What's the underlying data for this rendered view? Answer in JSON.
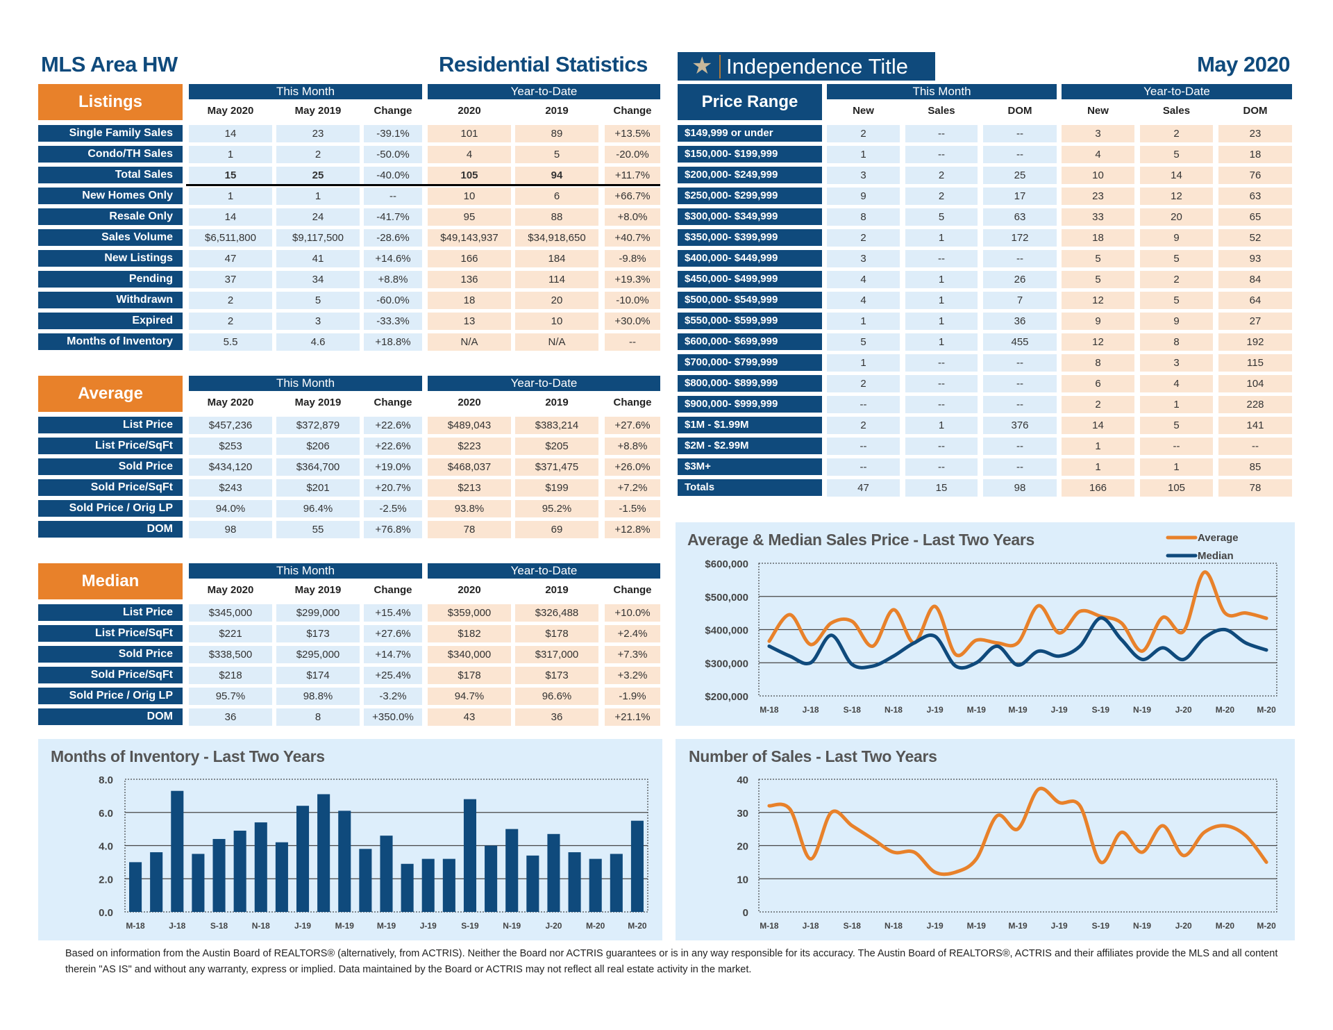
{
  "header": {
    "left_title": "MLS Area HW",
    "center_title": "Residential Statistics",
    "logo_text": "Independence Title",
    "date_title": "May 2020"
  },
  "colors": {
    "navy": "#0f4a7c",
    "orange": "#e8812a",
    "this_month_cell": "#deedf9",
    "ytd_cell": "#fbe5d2",
    "panel": "#ddeefb"
  },
  "groups": {
    "this_month": "This Month",
    "ytd": "Year-to-Date"
  },
  "stat_columns": [
    "May 2020",
    "May 2019",
    "Change",
    "2020",
    "2019",
    "Change"
  ],
  "listings": {
    "title": "Listings",
    "rows": [
      {
        "label": "Single Family Sales",
        "values": [
          "14",
          "23",
          "-39.1%",
          "101",
          "89",
          "+13.5%"
        ]
      },
      {
        "label": "Condo/TH Sales",
        "values": [
          "1",
          "2",
          "-50.0%",
          "4",
          "5",
          "-20.0%"
        ]
      },
      {
        "label": "Total Sales",
        "values": [
          "15",
          "25",
          "-40.0%",
          "105",
          "94",
          "+11.7%"
        ],
        "bold": true
      },
      {
        "label": "New Homes Only",
        "values": [
          "1",
          "1",
          "--",
          "10",
          "6",
          "+66.7%"
        ]
      },
      {
        "label": "Resale Only",
        "values": [
          "14",
          "24",
          "-41.7%",
          "95",
          "88",
          "+8.0%"
        ]
      },
      {
        "label": "Sales Volume",
        "values": [
          "$6,511,800",
          "$9,117,500",
          "-28.6%",
          "$49,143,937",
          "$34,918,650",
          "+40.7%"
        ]
      },
      {
        "label": "New Listings",
        "values": [
          "47",
          "41",
          "+14.6%",
          "166",
          "184",
          "-9.8%"
        ]
      },
      {
        "label": "Pending",
        "values": [
          "37",
          "34",
          "+8.8%",
          "136",
          "114",
          "+19.3%"
        ]
      },
      {
        "label": "Withdrawn",
        "values": [
          "2",
          "5",
          "-60.0%",
          "18",
          "20",
          "-10.0%"
        ]
      },
      {
        "label": "Expired",
        "values": [
          "2",
          "3",
          "-33.3%",
          "13",
          "10",
          "+30.0%"
        ]
      },
      {
        "label": "Months of Inventory",
        "values": [
          "5.5",
          "4.6",
          "+18.8%",
          "N/A",
          "N/A",
          "--"
        ]
      }
    ]
  },
  "average": {
    "title": "Average",
    "rows": [
      {
        "label": "List Price",
        "values": [
          "$457,236",
          "$372,879",
          "+22.6%",
          "$489,043",
          "$383,214",
          "+27.6%"
        ]
      },
      {
        "label": "List Price/SqFt",
        "values": [
          "$253",
          "$206",
          "+22.6%",
          "$223",
          "$205",
          "+8.8%"
        ]
      },
      {
        "label": "Sold Price",
        "values": [
          "$434,120",
          "$364,700",
          "+19.0%",
          "$468,037",
          "$371,475",
          "+26.0%"
        ]
      },
      {
        "label": "Sold Price/SqFt",
        "values": [
          "$243",
          "$201",
          "+20.7%",
          "$213",
          "$199",
          "+7.2%"
        ]
      },
      {
        "label": "Sold Price / Orig LP",
        "values": [
          "94.0%",
          "96.4%",
          "-2.5%",
          "93.8%",
          "95.2%",
          "-1.5%"
        ]
      },
      {
        "label": "DOM",
        "values": [
          "98",
          "55",
          "+76.8%",
          "78",
          "69",
          "+12.8%"
        ]
      }
    ]
  },
  "median": {
    "title": "Median",
    "rows": [
      {
        "label": "List Price",
        "values": [
          "$345,000",
          "$299,000",
          "+15.4%",
          "$359,000",
          "$326,488",
          "+10.0%"
        ]
      },
      {
        "label": "List Price/SqFt",
        "values": [
          "$221",
          "$173",
          "+27.6%",
          "$182",
          "$178",
          "+2.4%"
        ]
      },
      {
        "label": "Sold Price",
        "values": [
          "$338,500",
          "$295,000",
          "+14.7%",
          "$340,000",
          "$317,000",
          "+7.3%"
        ]
      },
      {
        "label": "Sold Price/SqFt",
        "values": [
          "$218",
          "$174",
          "+25.4%",
          "$178",
          "$173",
          "+3.2%"
        ]
      },
      {
        "label": "Sold Price / Orig LP",
        "values": [
          "95.7%",
          "98.8%",
          "-3.2%",
          "94.7%",
          "96.6%",
          "-1.9%"
        ]
      },
      {
        "label": "DOM",
        "values": [
          "36",
          "8",
          "+350.0%",
          "43",
          "36",
          "+21.1%"
        ]
      }
    ]
  },
  "price_range": {
    "title": "Price Range",
    "columns": [
      "New",
      "Sales",
      "DOM",
      "New",
      "Sales",
      "DOM"
    ],
    "rows": [
      {
        "label": "$149,999 or under",
        "values": [
          "2",
          "--",
          "--",
          "3",
          "2",
          "23"
        ]
      },
      {
        "label": "$150,000- $199,999",
        "values": [
          "1",
          "--",
          "--",
          "4",
          "5",
          "18"
        ]
      },
      {
        "label": "$200,000- $249,999",
        "values": [
          "3",
          "2",
          "25",
          "10",
          "14",
          "76"
        ]
      },
      {
        "label": "$250,000- $299,999",
        "values": [
          "9",
          "2",
          "17",
          "23",
          "12",
          "63"
        ]
      },
      {
        "label": "$300,000- $349,999",
        "values": [
          "8",
          "5",
          "63",
          "33",
          "20",
          "65"
        ]
      },
      {
        "label": "$350,000- $399,999",
        "values": [
          "2",
          "1",
          "172",
          "18",
          "9",
          "52"
        ]
      },
      {
        "label": "$400,000- $449,999",
        "values": [
          "3",
          "--",
          "--",
          "5",
          "5",
          "93"
        ]
      },
      {
        "label": "$450,000- $499,999",
        "values": [
          "4",
          "1",
          "26",
          "5",
          "2",
          "84"
        ]
      },
      {
        "label": "$500,000- $549,999",
        "values": [
          "4",
          "1",
          "7",
          "12",
          "5",
          "64"
        ]
      },
      {
        "label": "$550,000- $599,999",
        "values": [
          "1",
          "1",
          "36",
          "9",
          "9",
          "27"
        ]
      },
      {
        "label": "$600,000- $699,999",
        "values": [
          "5",
          "1",
          "455",
          "12",
          "8",
          "192"
        ]
      },
      {
        "label": "$700,000- $799,999",
        "values": [
          "1",
          "--",
          "--",
          "8",
          "3",
          "115"
        ]
      },
      {
        "label": "$800,000- $899,999",
        "values": [
          "2",
          "--",
          "--",
          "6",
          "4",
          "104"
        ]
      },
      {
        "label": "$900,000- $999,999",
        "values": [
          "--",
          "--",
          "--",
          "2",
          "1",
          "228"
        ]
      },
      {
        "label": "$1M - $1.99M",
        "values": [
          "2",
          "1",
          "376",
          "14",
          "5",
          "141"
        ]
      },
      {
        "label": "$2M - $2.99M",
        "values": [
          "--",
          "--",
          "--",
          "1",
          "--",
          "--"
        ]
      },
      {
        "label": "$3M+",
        "values": [
          "--",
          "--",
          "--",
          "1",
          "1",
          "85"
        ]
      },
      {
        "label": "Totals",
        "values": [
          "47",
          "15",
          "98",
          "166",
          "105",
          "78"
        ]
      }
    ]
  },
  "chart_data": [
    {
      "type": "line",
      "title": "Average & Median Sales Price - Last Two Years",
      "ylim": [
        200000,
        600000
      ],
      "yticks": [
        "$600,000",
        "$500,000",
        "$400,000",
        "$300,000",
        "$200,000"
      ],
      "xtick_labels": [
        "M-18",
        "J-18",
        "S-18",
        "N-18",
        "J-19",
        "M-19",
        "M-19",
        "J-19",
        "S-19",
        "N-19",
        "J-20",
        "M-20",
        "M-20"
      ],
      "grid": true,
      "legend": "top-right",
      "series": [
        {
          "name": "Average",
          "color": "#e8812a",
          "values": [
            365000,
            445000,
            355000,
            420000,
            425000,
            350000,
            460000,
            360000,
            470000,
            325000,
            368000,
            360000,
            360000,
            472000,
            390000,
            455000,
            440000,
            420000,
            335000,
            437000,
            395000,
            573000,
            450000,
            450000,
            434120
          ]
        },
        {
          "name": "Median",
          "color": "#0f4a7c",
          "values": [
            350000,
            320000,
            300000,
            383000,
            295000,
            290000,
            320000,
            360000,
            380000,
            290000,
            300000,
            350000,
            293000,
            335000,
            320000,
            350000,
            435000,
            370000,
            310000,
            345000,
            310000,
            375000,
            400000,
            360000,
            338500
          ]
        }
      ]
    },
    {
      "type": "bar",
      "title": "Months of Inventory - Last Two Years",
      "ylim": [
        0,
        8
      ],
      "yticks": [
        "8.0",
        "6.0",
        "4.0",
        "2.0",
        "0.0"
      ],
      "xtick_labels": [
        "M-18",
        "J-18",
        "S-18",
        "N-18",
        "J-19",
        "M-19",
        "M-19",
        "J-19",
        "S-19",
        "N-19",
        "J-20",
        "M-20",
        "M-20"
      ],
      "grid": true,
      "color": "#0f4a7c",
      "values": [
        3.0,
        3.6,
        7.3,
        3.5,
        4.4,
        4.9,
        5.4,
        4.2,
        6.4,
        7.1,
        6.1,
        3.8,
        4.6,
        2.9,
        3.2,
        3.2,
        6.8,
        4.0,
        5.0,
        3.4,
        4.7,
        3.6,
        3.2,
        3.5,
        5.5
      ]
    },
    {
      "type": "line",
      "title": "Number of Sales - Last Two Years",
      "ylim": [
        0,
        40
      ],
      "yticks": [
        "40",
        "30",
        "20",
        "10",
        "0"
      ],
      "xtick_labels": [
        "M-18",
        "J-18",
        "S-18",
        "N-18",
        "J-19",
        "M-19",
        "M-19",
        "J-19",
        "S-19",
        "N-19",
        "J-20",
        "M-20",
        "M-20"
      ],
      "grid": true,
      "color": "#e8812a",
      "values": [
        32,
        31,
        16,
        30,
        26,
        22,
        18,
        18,
        12,
        12,
        16,
        29,
        25,
        37,
        33,
        32,
        15,
        24,
        18,
        26,
        17,
        24,
        26,
        23,
        15
      ]
    }
  ],
  "footer": "Based on information from the Austin Board of REALTORS® (alternatively, from ACTRIS). Neither the Board nor ACTRIS guarantees or is in any way responsible for its accuracy. The Austin Board of REALTORS®, ACTRIS and their affiliates provide the MLS and all content therein \"AS IS\" and without any warranty, express or implied. Data maintained by the Board or ACTRIS may not reflect all real estate activity in the market."
}
